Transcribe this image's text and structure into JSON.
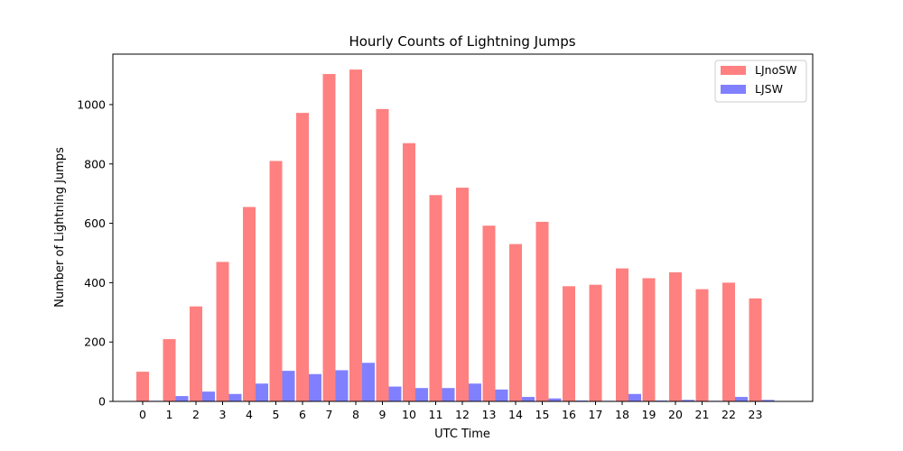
{
  "chart_data": {
    "type": "bar",
    "title": "Hourly Counts of Lightning Jumps",
    "xlabel": "UTC Time",
    "ylabel": "Number of Lightning Jumps",
    "categories": [
      "0",
      "1",
      "2",
      "3",
      "4",
      "5",
      "6",
      "7",
      "8",
      "9",
      "10",
      "11",
      "12",
      "13",
      "14",
      "15",
      "16",
      "17",
      "18",
      "19",
      "20",
      "21",
      "22",
      "23"
    ],
    "series": [
      {
        "name": "LJnoSW",
        "color": "#ff8080",
        "values": [
          100,
          210,
          320,
          470,
          655,
          810,
          972,
          1103,
          1118,
          985,
          870,
          695,
          720,
          592,
          530,
          605,
          388,
          393,
          448,
          415,
          435,
          378,
          400,
          347
        ]
      },
      {
        "name": "LJSW",
        "color": "#8080ff",
        "values": [
          2,
          18,
          33,
          25,
          60,
          103,
          92,
          105,
          130,
          50,
          45,
          45,
          60,
          40,
          15,
          10,
          3,
          2,
          25,
          3,
          5,
          2,
          15,
          5
        ]
      }
    ],
    "yticks": [
      0,
      200,
      400,
      600,
      800,
      1000
    ],
    "ylim": [
      0,
      1170
    ],
    "legend_position": "top-right",
    "grid": false
  }
}
